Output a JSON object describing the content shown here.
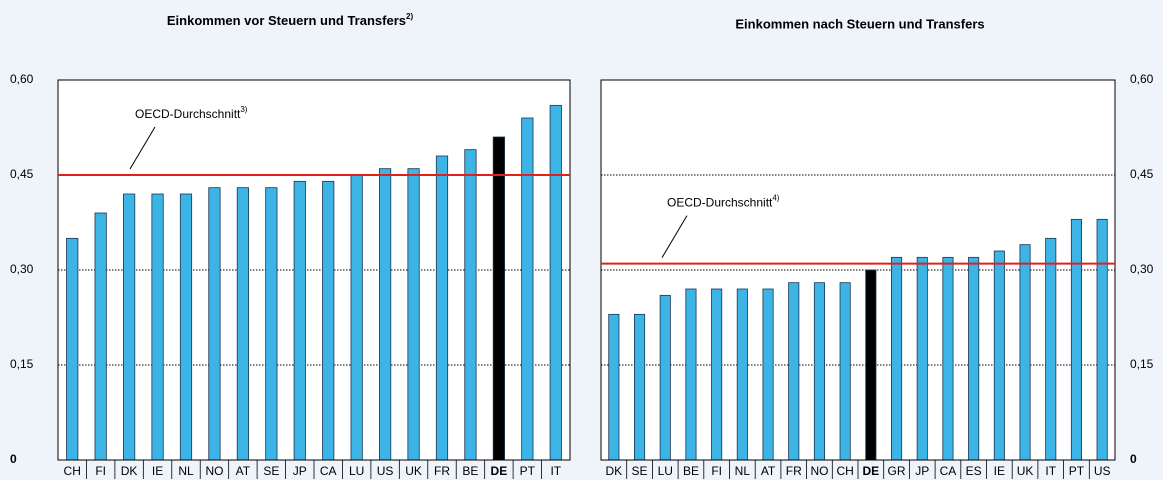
{
  "chart_data": [
    {
      "type": "bar",
      "title": "Einkommen vor Steuern und Transfers",
      "title_note": "2)",
      "categories": [
        "CH",
        "FI",
        "DK",
        "IE",
        "NL",
        "NO",
        "AT",
        "SE",
        "JP",
        "CA",
        "LU",
        "US",
        "UK",
        "FR",
        "BE",
        "DE",
        "PT",
        "IT"
      ],
      "values": [
        0.35,
        0.39,
        0.42,
        0.42,
        0.42,
        0.43,
        0.43,
        0.43,
        0.44,
        0.44,
        0.45,
        0.46,
        0.46,
        0.48,
        0.49,
        0.51,
        0.54,
        0.56
      ],
      "colors": [
        "#3cb4e6",
        "#3cb4e6",
        "#3cb4e6",
        "#3cb4e6",
        "#3cb4e6",
        "#3cb4e6",
        "#3cb4e6",
        "#3cb4e6",
        "#3cb4e6",
        "#3cb4e6",
        "#3cb4e6",
        "#3cb4e6",
        "#3cb4e6",
        "#3cb4e6",
        "#3cb4e6",
        "#000000",
        "#3cb4e6",
        "#3cb4e6"
      ],
      "reference_line": {
        "label": "OECD-Durchschnitt",
        "note": "3)",
        "value": 0.45,
        "color": "#e0201b"
      },
      "ylim": [
        0,
        0.6
      ],
      "yticks": [
        0,
        {
          "value": 0.15,
          "label": "0,15"
        },
        {
          "value": 0.3,
          "label": "0,30"
        },
        {
          "value": 0.45,
          "label": "0,45"
        },
        {
          "value": 0.6,
          "label": "0,60"
        }
      ],
      "y_axis_side": "left",
      "grid": true
    },
    {
      "type": "bar",
      "title": "Einkommen nach Steuern und Transfers",
      "categories": [
        "DK",
        "SE",
        "LU",
        "BE",
        "FI",
        "NL",
        "AT",
        "FR",
        "NO",
        "CH",
        "DE",
        "GR",
        "JP",
        "CA",
        "ES",
        "IE",
        "UK",
        "IT",
        "PT",
        "US"
      ],
      "values": [
        0.23,
        0.23,
        0.26,
        0.27,
        0.27,
        0.27,
        0.27,
        0.28,
        0.28,
        0.28,
        0.3,
        0.32,
        0.32,
        0.32,
        0.32,
        0.33,
        0.34,
        0.35,
        0.38,
        0.38
      ],
      "colors": [
        "#3cb4e6",
        "#3cb4e6",
        "#3cb4e6",
        "#3cb4e6",
        "#3cb4e6",
        "#3cb4e6",
        "#3cb4e6",
        "#3cb4e6",
        "#3cb4e6",
        "#3cb4e6",
        "#000000",
        "#3cb4e6",
        "#3cb4e6",
        "#3cb4e6",
        "#3cb4e6",
        "#3cb4e6",
        "#3cb4e6",
        "#3cb4e6",
        "#3cb4e6",
        "#3cb4e6"
      ],
      "reference_line": {
        "label": "OECD-Durchschnitt",
        "note": "4)",
        "value": 0.31,
        "color": "#e0201b"
      },
      "ylim": [
        0,
        0.6
      ],
      "yticks": [
        0,
        {
          "value": 0.15,
          "label": "0,15"
        },
        {
          "value": 0.3,
          "label": "0,30"
        },
        {
          "value": 0.45,
          "label": "0,45"
        },
        {
          "value": 0.6,
          "label": "0,60"
        }
      ],
      "y_axis_side": "right",
      "grid": true
    }
  ]
}
